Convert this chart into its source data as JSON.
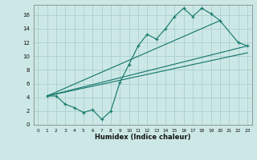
{
  "xlabel": "Humidex (Indice chaleur)",
  "bg_color": "#cce8e6",
  "grid_color": "#aacfcc",
  "line_color": "#1a7a6e",
  "xlim": [
    -0.5,
    23.5
  ],
  "ylim": [
    0,
    17.5
  ],
  "xticks": [
    0,
    1,
    2,
    3,
    4,
    5,
    6,
    7,
    8,
    9,
    10,
    11,
    12,
    13,
    14,
    15,
    16,
    17,
    18,
    19,
    20,
    21,
    22,
    23
  ],
  "yticks": [
    0,
    2,
    4,
    6,
    8,
    10,
    12,
    14,
    16
  ],
  "zigzag_x": [
    1,
    2,
    3,
    4,
    5,
    6,
    7,
    8,
    9,
    10,
    11,
    12,
    13,
    14,
    15,
    16,
    17,
    18,
    19,
    20,
    22,
    23
  ],
  "zigzag_y": [
    4.2,
    4.2,
    3.0,
    2.5,
    1.8,
    2.2,
    0.8,
    2.0,
    6.2,
    8.8,
    11.5,
    13.2,
    12.5,
    14.0,
    15.8,
    17.0,
    15.8,
    17.0,
    16.2,
    15.2,
    12.0,
    11.5
  ],
  "line1_x": [
    1,
    23
  ],
  "line1_y": [
    4.2,
    11.5
  ],
  "line2_x": [
    1,
    20
  ],
  "line2_y": [
    4.2,
    15.2
  ],
  "line3_x": [
    1,
    23
  ],
  "line3_y": [
    4.2,
    10.5
  ]
}
